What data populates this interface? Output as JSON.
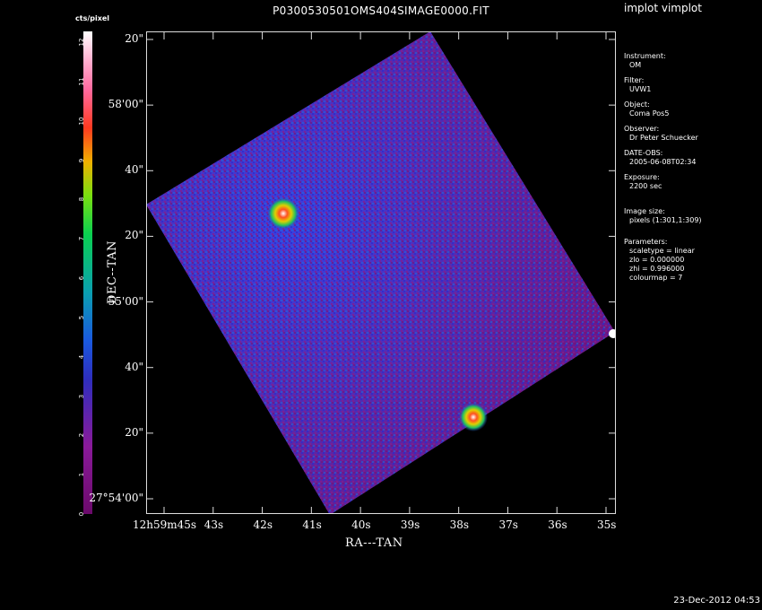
{
  "window": {
    "app_title": "implot vimplot"
  },
  "plot": {
    "title": "P0300530501OMS404SIMAGE0000.FIT",
    "x_axis_label": "RA---TAN",
    "y_axis_label": "DEC--TAN",
    "x_ticks": [
      "12h59m45s",
      "43s",
      "42s",
      "41s",
      "40s",
      "39s",
      "38s",
      "37s",
      "36s",
      "35s"
    ],
    "y_ticks": [
      "20\"",
      "58'00\"",
      "40\"",
      "20\"",
      "55'00\"",
      "40\"",
      "20\"",
      "27°54'00\""
    ]
  },
  "colorbar": {
    "units": "cts/pixel",
    "ticks": [
      "0",
      "1",
      "2",
      "3",
      "4",
      "5",
      "6",
      "7",
      "8",
      "9",
      "10",
      "11",
      "12"
    ]
  },
  "info_panel": {
    "instrument_label": "Instrument:",
    "instrument_value": "OM",
    "filter_label": "Filter:",
    "filter_value": "UVW1",
    "object_label": "Object:",
    "object_value": "Coma Pos5",
    "observer_label": "Observer:",
    "observer_value": "Dr Peter Schuecker",
    "date_label": "DATE-OBS:",
    "date_value": "2005-06-08T02:34",
    "exposure_label": "Exposure:",
    "exposure_value": "2200 sec",
    "image_size_label": "Image size:",
    "image_size_value": "pixels (1:301,1:309)",
    "parameters_label": "Parameters:",
    "scaletype": "scaletype = linear",
    "zlo": "zlo = 0.000000",
    "zhi": "zhi = 0.996000",
    "colourmap": "colourmap =   7"
  },
  "footer": {
    "timestamp": "23-Dec-2012 04:53"
  },
  "colors": {
    "background": "#000000",
    "image_low": "#7a1a7a",
    "image_mid": "#2e2ebe",
    "source": "#ffffff"
  }
}
